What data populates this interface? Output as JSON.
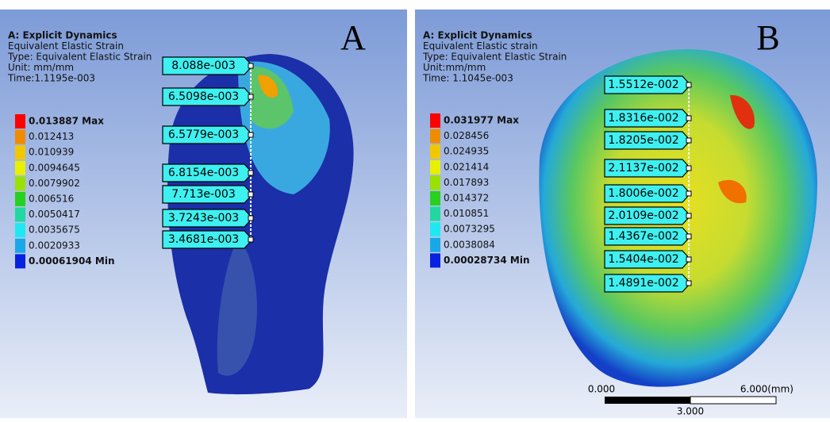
{
  "panels": [
    {
      "letter": "A",
      "header": [
        "A: Explicit Dynamics",
        "Equivalent Elastic Strain",
        "Type: Equivalent Elastic Strain",
        "Unit: mm/mm",
        "Time:1.1195e-003"
      ],
      "legend": [
        "0.013887 Max",
        "0.012413",
        "0.010939",
        "0.0094645",
        "0.0079902",
        "0.006516",
        "0.0050417",
        "0.0035675",
        "0.0020933",
        "0.00061904 Min"
      ],
      "probes": [
        "8.088e-003",
        "6.5098e-003",
        "6.5779e-003",
        "6.8154e-003",
        "7.713e-003",
        "3.7243e-003",
        "3.4681e-003"
      ]
    },
    {
      "letter": "B",
      "header": [
        "A: Explicit Dynamics",
        "Equivalent Elastic strain",
        "Type: Equivalent Elastic Strain",
        "Unit:mm/mm",
        "Time: 1.1045e-003"
      ],
      "legend": [
        "0.031977 Max",
        "0.028456",
        "0.024935",
        "0.021414",
        "0.017893",
        "0.014372",
        "0.010851",
        "0.0073295",
        "0.0038084",
        "0.00028734 Min"
      ],
      "probes": [
        "1.5512e-002",
        "1.8316e-002",
        "1.8205e-002",
        "2.1137e-002",
        "1.8006e-002",
        "2.0109e-002",
        "1.4367e-002",
        "1.5404e-002",
        "1.4891e-002"
      ]
    }
  ],
  "scale_bar": {
    "start": "0.000",
    "end": "6.000(mm)",
    "middle": "3.000"
  }
}
